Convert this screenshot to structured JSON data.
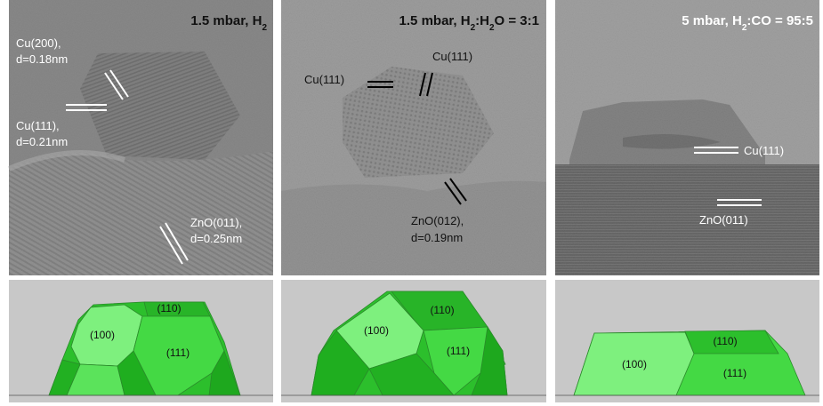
{
  "panels": [
    {
      "title": [
        {
          "text": "1.5 mbar, H"
        },
        {
          "sub": "2"
        }
      ],
      "labels": [
        "Cu(200),",
        "d=0.18nm",
        "Cu(111),",
        "d=0.21nm",
        "ZnO(011),",
        "d=0.25nm"
      ],
      "facets": [
        "(110)",
        "(100)",
        "(111)"
      ]
    },
    {
      "title": [
        {
          "text": "1.5 mbar, H"
        },
        {
          "sub": "2"
        },
        {
          "text": ":H"
        },
        {
          "sub": "2"
        },
        {
          "text": "O = 3:1"
        }
      ],
      "labels": [
        "Cu(111)",
        "Cu(111)",
        "ZnO(012),",
        "d=0.19nm"
      ],
      "facets": [
        "(110)",
        "(100)",
        "(111)"
      ]
    },
    {
      "title": [
        {
          "text": "5 mbar, H"
        },
        {
          "sub": "2"
        },
        {
          "text": ":CO = 95:5"
        }
      ],
      "labels": [
        "Cu(111)",
        "ZnO(011)"
      ],
      "facets": [
        "(110)",
        "(100)",
        "(111)"
      ]
    }
  ]
}
